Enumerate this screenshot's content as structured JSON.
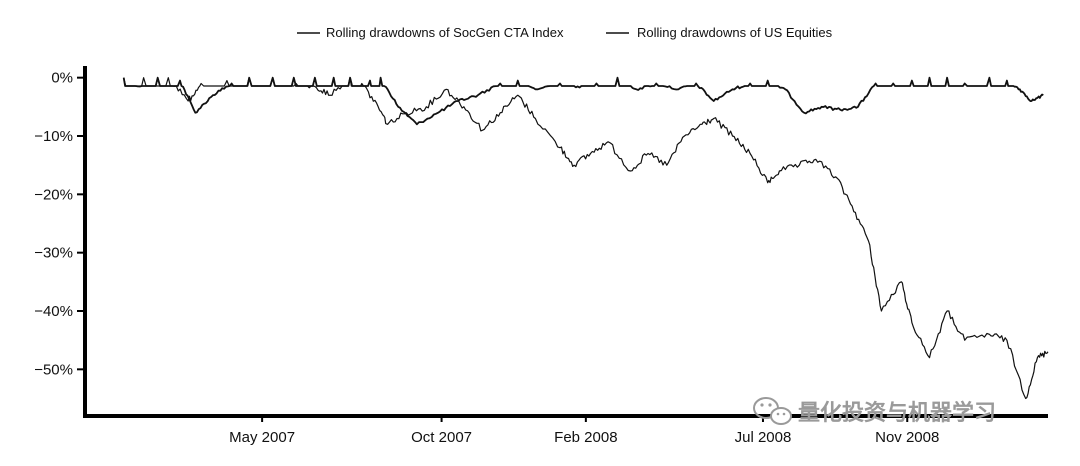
{
  "chart_data": {
    "type": "line",
    "title": "",
    "xlabel": "",
    "ylabel": "",
    "x_tick_labels": [
      "May 2007",
      "Oct 2007",
      "Feb 2008",
      "Jul 2008",
      "Nov 2008"
    ],
    "x_tick_dates": [
      "2007-05-01",
      "2007-10-01",
      "2008-02-01",
      "2008-07-01",
      "2008-11-01"
    ],
    "y_tick_labels": [
      "0%",
      "−10%",
      "−20%",
      "−30%",
      "−40%",
      "−50%"
    ],
    "y_tick_values": [
      0,
      -10,
      -20,
      -30,
      -40,
      -50
    ],
    "ylim": [
      -58,
      2
    ],
    "xlim": [
      "2006-12-01",
      "2009-03-01"
    ],
    "grid": false,
    "legend_position": "top",
    "series": [
      {
        "name": "Rolling drawdowns of SocGen CTA Index",
        "color": "#111111",
        "x": [
          "2007-01-03",
          "2007-01-15",
          "2007-02-01",
          "2007-02-20",
          "2007-03-05",
          "2007-03-20",
          "2007-04-05",
          "2007-04-20",
          "2007-05-10",
          "2007-05-28",
          "2007-06-15",
          "2007-07-01",
          "2007-07-15",
          "2007-08-01",
          "2007-08-10",
          "2007-08-25",
          "2007-09-10",
          "2007-09-28",
          "2007-10-15",
          "2007-11-01",
          "2007-11-20",
          "2007-12-05",
          "2007-12-20",
          "2008-01-10",
          "2008-01-25",
          "2008-02-10",
          "2008-02-28",
          "2008-03-15",
          "2008-04-01",
          "2008-04-20",
          "2008-05-05",
          "2008-05-20",
          "2008-06-05",
          "2008-06-20",
          "2008-07-05",
          "2008-07-20",
          "2008-08-05",
          "2008-08-20",
          "2008-09-05",
          "2008-09-20",
          "2008-10-05",
          "2008-10-20",
          "2008-11-05",
          "2008-11-20",
          "2008-12-05",
          "2008-12-20",
          "2009-01-10",
          "2009-01-25",
          "2009-02-05",
          "2009-02-15",
          "2009-02-25"
        ],
        "y": [
          0,
          -1.5,
          0,
          -0.5,
          -6,
          -3,
          -1,
          0,
          0,
          0,
          0,
          0,
          0,
          -0.5,
          0,
          -5,
          -8,
          -6,
          -4,
          -3,
          -1,
          -0.5,
          -2,
          -1,
          -1.5,
          -1,
          0,
          -2,
          -1,
          -2,
          -1,
          -4,
          -2,
          -1,
          -0.5,
          -2,
          -6,
          -5,
          -5.5,
          -5,
          -1,
          -1,
          -0.5,
          0,
          0,
          -1,
          0,
          -0.5,
          -2,
          -4,
          -3
        ]
      },
      {
        "name": "Rolling drawdowns of US Equities",
        "color": "#111111",
        "x": [
          "2007-01-03",
          "2007-01-20",
          "2007-02-10",
          "2007-02-27",
          "2007-03-10",
          "2007-04-01",
          "2007-04-20",
          "2007-05-10",
          "2007-05-30",
          "2007-06-15",
          "2007-06-28",
          "2007-07-15",
          "2007-07-25",
          "2007-08-08",
          "2007-08-16",
          "2007-09-01",
          "2007-09-18",
          "2007-10-05",
          "2007-10-20",
          "2007-11-05",
          "2007-11-20",
          "2007-12-05",
          "2007-12-20",
          "2008-01-10",
          "2008-01-22",
          "2008-02-05",
          "2008-02-20",
          "2008-03-10",
          "2008-03-25",
          "2008-04-10",
          "2008-04-25",
          "2008-05-10",
          "2008-05-20",
          "2008-06-05",
          "2008-06-20",
          "2008-07-05",
          "2008-07-15",
          "2008-08-01",
          "2008-08-15",
          "2008-09-01",
          "2008-09-15",
          "2008-09-29",
          "2008-10-10",
          "2008-10-27",
          "2008-11-05",
          "2008-11-20",
          "2008-12-05",
          "2008-12-20",
          "2009-01-10",
          "2009-01-25",
          "2009-02-10",
          "2009-02-20",
          "2009-03-01"
        ],
        "y": [
          0,
          0,
          0,
          -4,
          -1,
          -0.5,
          0,
          0,
          -1,
          -1.5,
          -3,
          0,
          -1,
          -5,
          -8,
          -6,
          -5,
          -2,
          -5,
          -9,
          -6,
          -3,
          -7,
          -12,
          -15,
          -13,
          -11,
          -16,
          -13,
          -15,
          -10,
          -8,
          -7,
          -10,
          -13,
          -18,
          -16,
          -15,
          -14,
          -17,
          -22,
          -28,
          -40,
          -35,
          -42,
          -48,
          -40,
          -45,
          -44,
          -45,
          -55,
          -48,
          -47
        ]
      }
    ]
  },
  "watermark": {
    "text": "量化投资与机器学习",
    "icon": "wechat-icon"
  }
}
